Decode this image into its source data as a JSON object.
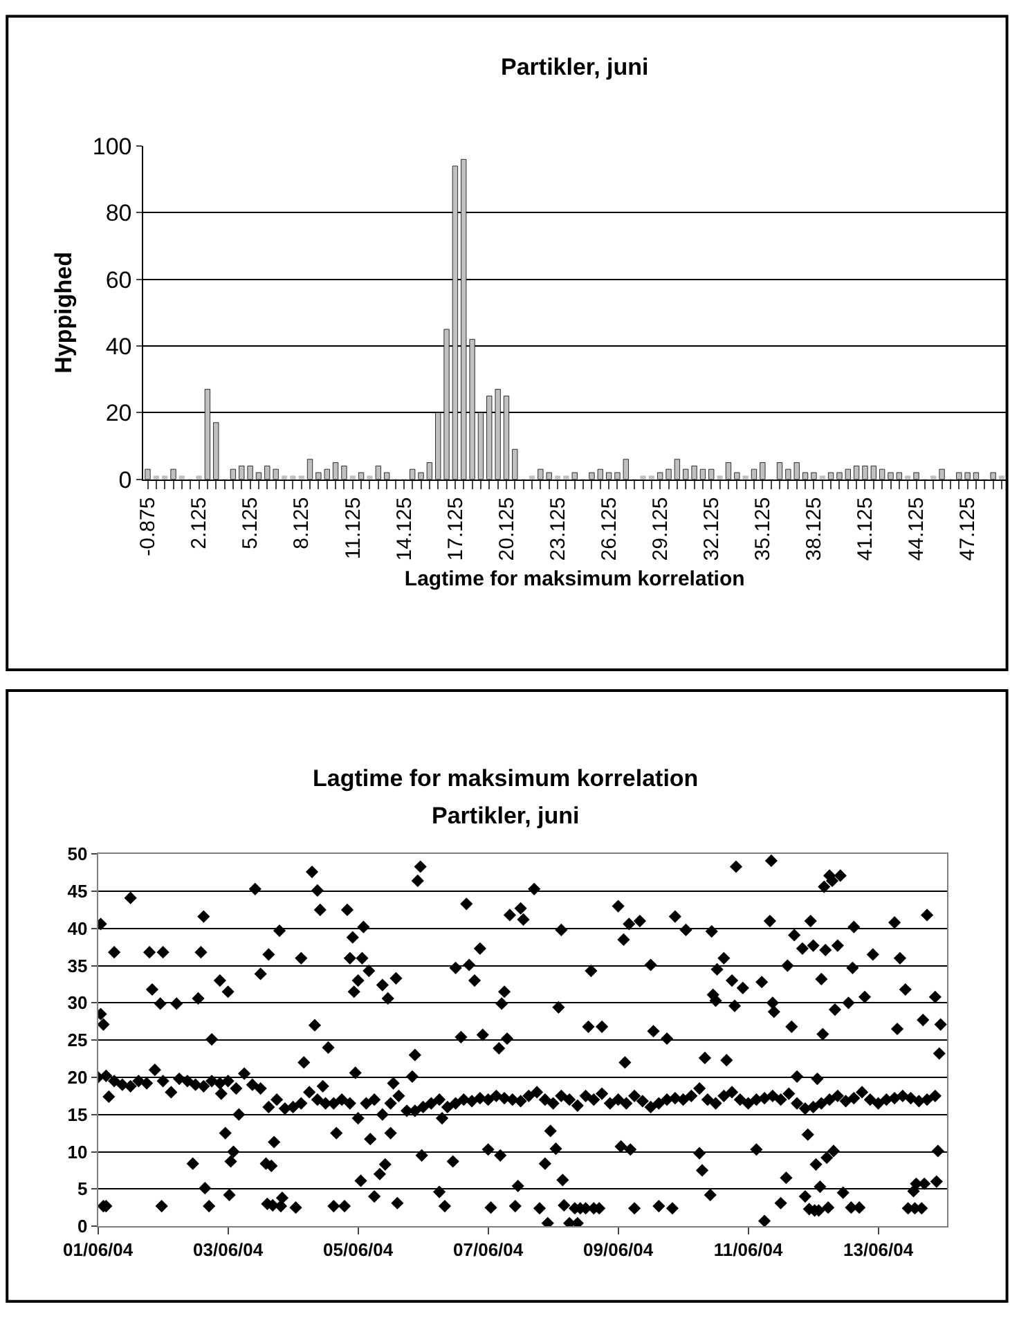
{
  "chart_data": [
    {
      "type": "bar",
      "title": "Partikler, juni",
      "xlabel": "Lagtime for maksimum korrelation",
      "ylabel": "Hyppighed",
      "categories": [
        "-0.875",
        null,
        null,
        null,
        null,
        null,
        "2.125",
        null,
        null,
        null,
        null,
        null,
        "5.125",
        null,
        null,
        null,
        null,
        null,
        "8.125",
        null,
        null,
        null,
        null,
        null,
        "11.125",
        null,
        null,
        null,
        null,
        null,
        "14.125",
        null,
        null,
        null,
        null,
        null,
        "17.125",
        null,
        null,
        null,
        null,
        null,
        "20.125",
        null,
        null,
        null,
        null,
        null,
        "23.125",
        null,
        null,
        null,
        null,
        null,
        "26.125",
        null,
        null,
        null,
        null,
        null,
        "29.125",
        null,
        null,
        null,
        null,
        null,
        "32.125",
        null,
        null,
        null,
        null,
        null,
        "35.125",
        null,
        null,
        null,
        null,
        null,
        "38.125",
        null,
        null,
        null,
        null,
        null,
        "41.125",
        null,
        null,
        null,
        null,
        null,
        "44.125",
        null,
        null,
        null,
        null,
        null,
        "47.125",
        null,
        null,
        null,
        null
      ],
      "values": [
        3,
        1,
        1,
        3,
        1,
        0,
        1,
        27,
        17,
        0,
        3,
        4,
        4,
        2,
        4,
        3,
        1,
        1,
        1,
        6,
        2,
        3,
        5,
        4,
        1,
        2,
        1,
        4,
        2,
        0,
        0,
        3,
        2,
        5,
        20,
        45,
        94,
        96,
        42,
        20,
        25,
        27,
        25,
        9,
        0,
        1,
        3,
        2,
        1,
        1,
        2,
        0,
        2,
        3,
        2,
        2,
        6,
        0,
        1,
        1,
        2,
        3,
        6,
        3,
        4,
        3,
        3,
        1,
        5,
        2,
        1,
        3,
        5,
        0,
        5,
        3,
        5,
        2,
        2,
        1,
        2,
        2,
        3,
        4,
        4,
        4,
        3,
        2,
        2,
        1,
        2,
        0,
        1,
        3,
        0,
        2,
        2,
        2,
        0,
        2,
        1
      ],
      "color": "#c0c0c0",
      "ylim": [
        0,
        100
      ],
      "yticks": [
        0,
        20,
        40,
        60,
        80,
        100
      ],
      "grid": "y"
    },
    {
      "type": "scatter",
      "title": "Lagtime for maksimum korrelation",
      "subtitle": "Partikler, juni",
      "color": "#000000",
      "marker": "diamond",
      "x": [
        "--06-01T00:00",
        "--06-01T03:00",
        "--06-01T06:00",
        "--06-01T09:00",
        "--06-01T12:00",
        "--06-01T15:00",
        "--06-01T18:00",
        "--06-01T21:00",
        "--06-02T00:00",
        "--06-02T03:00",
        "--06-02T06:00",
        "--06-02T09:00",
        "--06-02T12:00",
        "--06-02T15:00",
        "--06-02T18:00",
        "--06-02T21:00",
        "--06-03T00:00",
        "--06-03T03:00",
        "--06-03T06:00",
        "--06-03T09:00",
        "--06-03T12:00",
        "--06-03T15:00",
        "--06-03T18:00",
        "--06-03T21:00",
        "--06-04T00:00",
        "--06-04T03:00",
        "--06-04T06:00",
        "--06-04T09:00",
        "--06-04T12:00",
        "--06-04T15:00",
        "--06-04T18:00",
        "--06-04T21:00",
        "--06-05T00:00",
        "--06-05T03:00",
        "--06-05T06:00",
        "--06-05T09:00",
        "--06-05T12:00",
        "--06-05T15:00",
        "--06-05T18:00",
        "--06-05T21:00",
        "--06-06T00:00",
        "--06-06T03:00",
        "--06-06T06:00",
        "--06-06T09:00",
        "--06-06T12:00",
        "--06-06T15:00",
        "--06-06T18:00",
        "--06-06T21:00",
        "--06-07T00:00",
        "--06-07T03:00",
        "--06-07T06:00",
        "--06-07T09:00",
        "--06-07T12:00",
        "--06-07T15:00",
        "--06-07T18:00",
        "--06-07T21:00",
        "--06-08T00:00",
        "--06-08T03:00",
        "--06-08T06:00",
        "--06-08T09:00",
        "--06-08T12:00",
        "--06-08T15:00",
        "--06-08T18:00",
        "--06-08T21:00",
        "--06-09T00:00",
        "--06-09T03:00",
        "--06-09T06:00",
        "--06-09T09:00",
        "--06-09T12:00",
        "--06-09T15:00",
        "--06-09T18:00",
        "--06-09T21:00",
        "--06-10T00:00",
        "--06-10T03:00",
        "--06-10T06:00",
        "--06-10T09:00",
        "--06-10T12:00",
        "--06-10T15:00",
        "--06-10T18:00",
        "--06-10T21:00",
        "--06-11T00:00",
        "--06-11T03:00",
        "--06-11T06:00",
        "--06-11T09:00",
        "--06-11T12:00",
        "--06-11T15:00",
        "--06-11T18:00",
        "--06-11T21:00",
        "--06-12T00:00",
        "--06-12T03:00",
        "--06-12T06:00",
        "--06-12T09:00",
        "--06-12T12:00",
        "--06-12T15:00",
        "--06-12T18:00",
        "--06-12T21:00",
        "--06-13T00:00",
        "--06-13T03:00",
        "--06-13T06:00",
        "--06-13T09:00",
        "--06-13T12:00",
        "--06-13T15:00",
        "--06-13T18:00",
        "--06-13T21:00",
        "--06-01T01:00",
        "--06-01T01:00",
        "--06-01T02:00",
        "--06-01T02:00",
        "--06-01T03:00",
        "--06-01T04:00",
        "--06-01T06:00",
        "--06-01T12:00",
        "--06-01T19:00",
        "--06-01T20:00",
        "--06-01T23:00",
        "--06-01T23:30",
        "--06-02T00:00",
        "--06-02T05:00",
        "--06-02T11:00",
        "--06-02T13:00",
        "--06-02T14:00",
        "--06-02T15:00",
        "--06-02T15:30",
        "--06-02T17:00",
        "--06-02T18:00",
        "--06-02T21:00",
        "--06-02T21:30",
        "--06-02T23:00",
        "--06-03T00:00",
        "--06-03T00:30",
        "--06-03T01:00",
        "--06-03T02:00",
        "--06-03T04:00",
        "--06-03T10:00",
        "--06-03T12:00",
        "--06-03T14:00",
        "--06-03T16:00",
        "--06-03T15:00",
        "--06-03T17:00",
        "--06-03T14:30",
        "--06-03T16:30",
        "--06-03T19:00",
        "--06-03T19:30",
        "--06-03T20:00",
        "--06-04T01:00",
        "--06-04T03:00",
        "--06-04T04:00",
        "--06-04T07:00",
        "--06-04T08:00",
        "--06-04T09:00",
        "--06-04T10:00",
        "--06-04T11:00",
        "--06-04T13:00",
        "--06-04T16:00",
        "--06-04T15:00",
        "--06-04T19:00",
        "--06-04T20:00",
        "--06-04T22:00",
        "--06-04T21:00",
        "--06-04T22:30",
        "--06-04T23:00",
        "--06-05T00:00",
        "--06-05T01:00",
        "--06-05T01:30",
        "--06-05T04:00",
        "--06-05T04:30",
        "--06-05T02:00",
        "--06-05T06:00",
        "--06-05T08:00",
        "--06-05T09:00",
        "--06-05T11:00",
        "--06-05T10:00",
        "--06-05T12:00",
        "--06-05T13:00",
        "--06-05T14:00",
        "--06-05T14:30",
        "--06-05T20:00",
        "--06-05T21:00",
        "--06-05T22:00",
        "--06-05T23:00",
        "--06-05T23:30",
        "--06-06T06:00",
        "--06-06T08:00",
        "--06-06T07:00",
        "--06-06T11:00",
        "--06-06T12:00",
        "--06-06T16:00",
        "--06-06T17:00",
        "--06-06T14:00",
        "--06-06T19:00",
        "--06-06T21:00",
        "--06-06T22:00",
        "--06-07T00:00",
        "--06-07T01:00",
        "--06-07T04:00",
        "--06-07T04:30",
        "--06-07T05:00",
        "--06-07T06:00",
        "--06-07T07:00",
        "--06-07T10:00",
        "--06-07T11:00",
        "--06-07T08:00",
        "--06-07T12:00",
        "--06-07T13:00",
        "--06-07T17:00",
        "--06-07T19:00",
        "--06-07T21:00",
        "--06-07T22:00",
        "--06-07T23:00",
        "--06-08T01:00",
        "--06-08T02:00",
        "--06-08T03:00",
        "--06-08T03:30",
        "--06-08T04:00",
        "--06-08T06:00",
        "--06-08T09:00",
        "--06-08T08:00",
        "--06-08T10:00",
        "--06-08T12:00",
        "--06-08T15:00",
        "--06-08T17:00",
        "--06-08T14:00",
        "--06-08T13:00",
        "--06-08T18:00",
        "--06-09T00:00",
        "--06-09T02:00",
        "--06-09T04:00",
        "--06-09T08:00",
        "--06-09T02:30",
        "--06-09T01:00",
        "--06-09T04:30",
        "--06-09T06:00",
        "--06-09T12:00",
        "--06-09T13:00",
        "--06-09T18:00",
        "--06-09T15:00",
        "--06-09T20:00",
        "--06-09T21:00",
        "--06-10T01:00",
        "--06-10T06:00",
        "--06-10T07:00",
        "--06-10T08:00",
        "--06-10T10:00",
        "--06-10T10:30",
        "--06-10T11:00",
        "--06-10T12:00",
        "--06-10T12:30",
        "--06-10T15:00",
        "--06-10T16:00",
        "--06-10T18:00",
        "--06-10T19:00",
        "--06-10T19:30",
        "--06-10T22:00",
        "--06-11T03:00",
        "--06-11T05:00",
        "--06-11T06:00",
        "--06-11T08:00",
        "--06-11T08:30",
        "--06-11T09:00",
        "--06-11T09:30",
        "--06-11T12:00",
        "--06-11T14:00",
        "--06-11T14:30",
        "--06-11T16:00",
        "--06-11T17:00",
        "--06-11T18:00",
        "--06-11T20:00",
        "--06-11T21:00",
        "--06-11T22:00",
        "--06-11T23:00",
        "--06-11T22:30",
        "--06-12T00:00",
        "--06-12T00:30",
        "--06-12T02:00",
        "--06-12T01:00",
        "--06-12T01:30",
        "--06-12T02:30",
        "--06-12T03:00",
        "--06-12T03:30",
        "--06-12T04:00",
        "--06-12T06:00",
        "--06-12T10:00",
        "--06-12T07:00",
        "--06-12T05:00",
        "--06-12T05:30",
        "--06-12T07:30",
        "--06-12T04:30",
        "--06-12T08:00",
        "--06-12T09:00",
        "--06-12T11:00",
        "--06-12T13:00",
        "--06-12T15:00",
        "--06-12T14:30",
        "--06-12T14:00",
        "--06-12T17:00",
        "--06-12T19:00",
        "--06-12T22:00",
        "--06-13T06:00",
        "--06-13T07:00",
        "--06-13T08:00",
        "--06-13T10:00",
        "--06-13T11:00",
        "--06-13T13:30",
        "--06-13T16:00",
        "--06-13T13:00",
        "--06-13T14:00",
        "--06-13T17:00",
        "--06-13T16:30",
        "--06-13T18:00",
        "--06-13T21:00",
        "--06-13T21:30",
        "--06-13T22:00",
        "--06-13T22:30",
        "--06-13T23:00"
      ],
      "values": [
        20,
        20.2,
        19.5,
        19,
        18.8,
        19.5,
        19.2,
        21,
        19.5,
        18,
        19.8,
        19.5,
        19,
        18.8,
        19.5,
        19.2,
        19.5,
        18.5,
        20.5,
        19,
        18.5,
        16,
        17,
        15.8,
        16,
        16.5,
        18,
        17,
        16.5,
        16.5,
        17,
        16.5,
        14.5,
        16.5,
        17,
        15,
        16.5,
        17.5,
        15.5,
        15.5,
        16,
        16.5,
        17,
        16,
        16.5,
        17,
        16.8,
        17.2,
        17,
        17.5,
        17.2,
        17,
        16.8,
        17.5,
        18,
        17,
        16.5,
        17.5,
        17,
        16.2,
        17.5,
        17,
        17.8,
        16.5,
        17,
        16.5,
        17.5,
        16.8,
        16,
        16.5,
        17,
        17.2,
        17,
        17.5,
        18.5,
        17,
        16.5,
        17.5,
        18,
        17,
        16.5,
        17,
        17.2,
        17.5,
        17,
        17.8,
        16.5,
        15.8,
        16,
        16.5,
        17,
        17.5,
        16.8,
        17.2,
        18,
        17,
        16.5,
        17,
        17.2,
        17.5,
        17.2,
        16.8,
        17,
        17.5,
        40.6,
        28.5,
        27.1,
        2.7,
        2.7,
        17.4,
        36.8,
        44.1,
        36.8,
        31.8,
        29.9,
        2.7,
        36.8,
        29.9,
        8.4,
        30.6,
        36.8,
        41.6,
        5.1,
        2.7,
        25.1,
        33,
        17.8,
        12.5,
        31.5,
        4.2,
        8.7,
        10,
        15,
        45.3,
        33.9,
        8.4,
        8.1,
        36.5,
        11.3,
        3,
        2.8,
        39.7,
        2.7,
        3.8,
        2.5,
        36,
        22,
        47.6,
        27,
        45.1,
        42.5,
        18.8,
        24,
        12.5,
        2.7,
        2.7,
        42.5,
        38.8,
        36,
        31.5,
        20.6,
        33,
        6.1,
        36,
        34.3,
        11.7,
        40.2,
        4,
        7,
        32.4,
        30.6,
        8.3,
        12.5,
        19.2,
        33.3,
        3.1,
        20.1,
        23,
        46.4,
        48.3,
        9.5,
        4.6,
        2.7,
        14.5,
        8.7,
        34.7,
        43.3,
        35.1,
        25.4,
        33,
        37.3,
        25.7,
        10.3,
        2.5,
        23.9,
        9.5,
        29.9,
        31.5,
        25.2,
        2.7,
        5.4,
        41.8,
        42.7,
        41.2,
        45.3,
        2.4,
        8.4,
        0.4,
        12.8,
        10.4,
        29.4,
        39.8,
        6.2,
        2.8,
        0.4,
        0.4,
        2.4,
        2.4,
        2.4,
        2.4,
        2.4,
        34.3,
        26.8,
        26.8,
        43,
        38.5,
        40.6,
        41,
        22,
        10.7,
        10.3,
        2.4,
        35.1,
        26.2,
        25.2,
        2.7,
        2.4,
        41.6,
        39.8,
        9.8,
        7.5,
        22.6,
        4.2,
        39.6,
        31.1,
        30.3,
        34.5,
        36,
        22.3,
        33,
        29.6,
        48.3,
        32,
        10.3,
        32.8,
        0.7,
        41,
        49.1,
        30,
        28.8,
        3.1,
        6.5,
        35,
        26.8,
        39.1,
        20.1,
        37.3,
        4,
        12.3,
        41,
        2.3,
        37.7,
        2.1,
        2.1,
        8.3,
        19.8,
        5.3,
        33.2,
        25.8,
        45.6,
        47.1,
        47.1,
        46.4,
        9.2,
        2.5,
        10.1,
        37.1,
        29.1,
        37.7,
        4.5,
        30,
        40.2,
        34.7,
        2.5,
        2.5,
        30.8,
        36.5,
        40.8,
        26.5,
        36,
        31.8,
        2.4,
        2.4,
        2.4,
        4.7,
        5.7,
        5.7,
        27.7,
        41.8,
        30.8,
        6,
        10.1,
        23.2,
        27.1
      ],
      "xlim": [
        "--06-01T00:00",
        "--06-14T01:30"
      ],
      "xticks": [
        {
          "value": "--06-01",
          "label": "01/06/04"
        },
        {
          "value": "--06-03",
          "label": "03/06/04"
        },
        {
          "value": "--06-05",
          "label": "05/06/04"
        },
        {
          "value": "--06-07",
          "label": "07/06/04"
        },
        {
          "value": "--06-09",
          "label": "09/06/04"
        },
        {
          "value": "--06-11",
          "label": "11/06/04"
        },
        {
          "value": "--06-13",
          "label": "13/06/04"
        }
      ],
      "ylim": [
        0,
        50
      ],
      "yticks": [
        0,
        5,
        10,
        15,
        20,
        25,
        30,
        35,
        40,
        45,
        50
      ],
      "grid": "y"
    }
  ]
}
